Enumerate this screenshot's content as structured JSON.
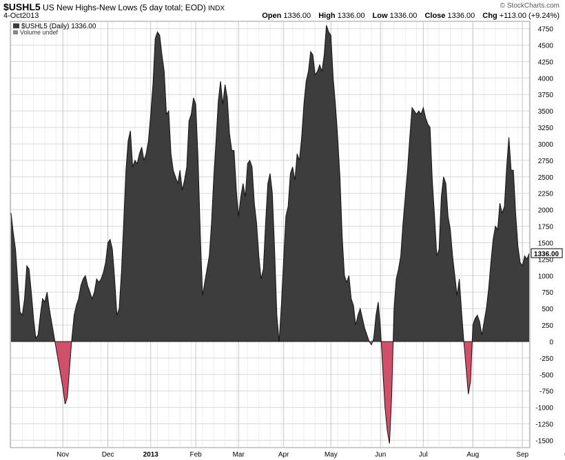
{
  "header": {
    "symbol": "$USHL5",
    "description": "US New Highs-New Lows (5 day total; EOD)",
    "exchange": "INDX",
    "date": "4-Oct2013",
    "brand": "© StockCharts.com",
    "open_label": "Open",
    "open": "1336.00",
    "high_label": "High",
    "high": "1336.00",
    "low_label": "Low",
    "low": "1336.00",
    "close_label": "Close",
    "close": "1336.00",
    "chg_label": "Chg",
    "chg": "+113.00 (+9.24%)"
  },
  "legend": {
    "series": "$USHL5 (Daily) 1336.00",
    "volume": "Volume undef"
  },
  "chart_data": {
    "type": "area",
    "ylim": [
      -1600,
      4850
    ],
    "y_ticks": [
      -1500,
      -1250,
      -1000,
      -750,
      -500,
      -250,
      0,
      250,
      500,
      750,
      1000,
      1250,
      1500,
      1750,
      2000,
      2250,
      2500,
      2750,
      3000,
      3250,
      3500,
      3750,
      4000,
      4250,
      4500,
      4750
    ],
    "x_ticks": [
      {
        "label": "Nov",
        "i": 23
      },
      {
        "label": "Dec",
        "i": 43
      },
      {
        "label": "2013",
        "i": 62
      },
      {
        "label": "Feb",
        "i": 82
      },
      {
        "label": "Mar",
        "i": 101
      },
      {
        "label": "Apr",
        "i": 121
      },
      {
        "label": "May",
        "i": 142
      },
      {
        "label": "Jun",
        "i": 164
      },
      {
        "label": "Jul",
        "i": 183
      },
      {
        "label": "Aug",
        "i": 205
      },
      {
        "label": "Sep",
        "i": 227
      },
      {
        "label": "Oct",
        "i": 248
      }
    ],
    "last_value_label": "1336.00",
    "positive_color": "#3d3d3d",
    "negative_color": "#d0506a",
    "values": [
      1950,
      1650,
      1400,
      900,
      450,
      400,
      650,
      1150,
      1100,
      750,
      350,
      50,
      100,
      400,
      650,
      600,
      750,
      500,
      300,
      100,
      -100,
      -300,
      -500,
      -700,
      -950,
      -850,
      -400,
      50,
      400,
      550,
      650,
      850,
      950,
      1000,
      850,
      750,
      650,
      750,
      950,
      900,
      950,
      1050,
      1200,
      1500,
      1550,
      1400,
      950,
      400,
      500,
      1050,
      1800,
      2600,
      3050,
      3200,
      2650,
      2750,
      2700,
      2850,
      2950,
      2750,
      2850,
      3050,
      3450,
      3900,
      4600,
      4700,
      4650,
      4350,
      4100,
      3450,
      3500,
      2850,
      2600,
      2500,
      2400,
      2600,
      2300,
      2450,
      2650,
      3350,
      3450,
      3700,
      3600,
      2800,
      1650,
      700,
      900,
      1100,
      1300,
      1800,
      2500,
      3050,
      3650,
      3950,
      3600,
      3900,
      3700,
      3150,
      2900,
      2900,
      2300,
      1900,
      2200,
      2400,
      2200,
      2700,
      2750,
      2650,
      2100,
      1800,
      1300,
      950,
      1100,
      1800,
      2400,
      2550,
      2250,
      1400,
      400,
      0,
      550,
      1250,
      1900,
      2050,
      2550,
      2650,
      2450,
      2850,
      2750,
      3100,
      3600,
      3950,
      4100,
      4400,
      4350,
      4050,
      4100,
      4200,
      4100,
      4350,
      4800,
      4700,
      4650,
      4000,
      3600,
      3100,
      2500,
      1600,
      1000,
      900,
      1000,
      650,
      550,
      250,
      400,
      500,
      350,
      200,
      100,
      0,
      -50,
      50,
      400,
      600,
      200,
      -400,
      -1000,
      -1350,
      -1550,
      -800,
      500,
      950,
      1100,
      1300,
      1800,
      2200,
      2600,
      3100,
      3550,
      3500,
      3450,
      3500,
      3450,
      3550,
      3400,
      3300,
      3250,
      2450,
      1900,
      1300,
      1400,
      2200,
      2500,
      2400,
      1900,
      1700,
      1300,
      1000,
      700,
      950,
      450,
      0,
      -400,
      -800,
      -600,
      250,
      350,
      400,
      300,
      100,
      300,
      500,
      800,
      1200,
      1550,
      1750,
      1700,
      2100,
      1950,
      2050,
      2650,
      3100,
      2600,
      2600,
      1950,
      1450,
      1200,
      1150,
      1300,
      1250,
      1336
    ]
  }
}
